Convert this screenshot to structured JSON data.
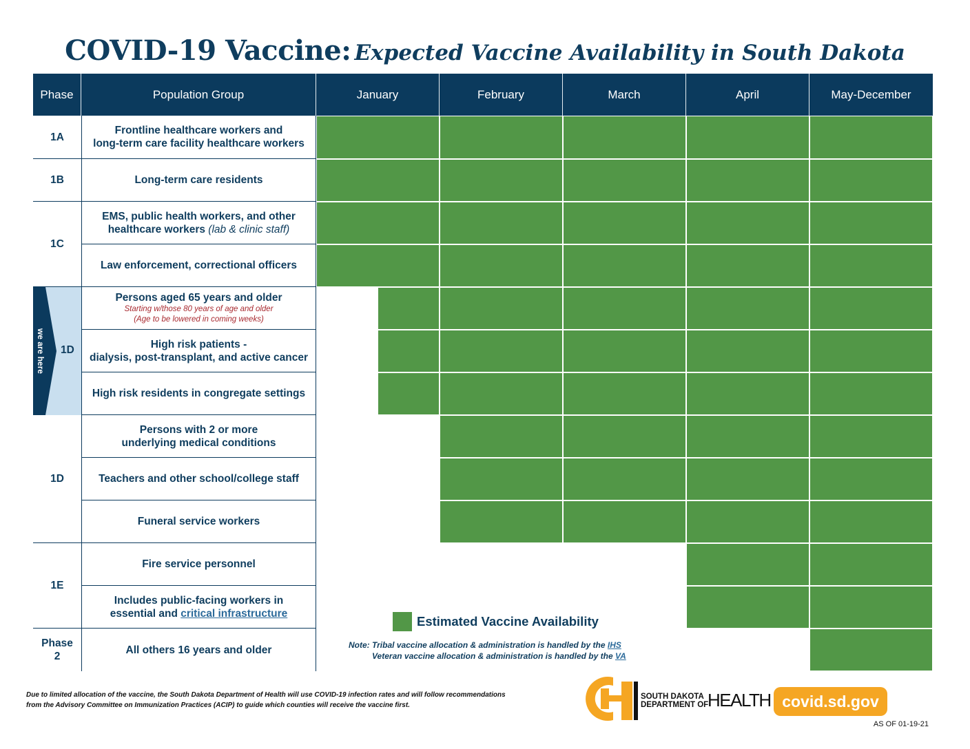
{
  "title": {
    "main": "COVID-19 Vaccine:",
    "sub": "Expected Vaccine Availability in South Dakota"
  },
  "headers": {
    "phase": "Phase",
    "group": "Population Group",
    "months": [
      "January",
      "February",
      "March",
      "April",
      "May-December"
    ]
  },
  "phases": {
    "p1a": "1A",
    "p1b": "1B",
    "p1c": "1C",
    "p1d_here": "1D",
    "p1d": "1D",
    "p1e": "1E",
    "p2_line1": "Phase",
    "p2_line2": "2"
  },
  "we_are_here": "we are here",
  "rows": {
    "r1": {
      "l1": "Frontline healthcare workers and",
      "l2": "long-term care facility healthcare workers"
    },
    "r2": {
      "l1": "Long-term care residents"
    },
    "r3": {
      "l1": "EMS, public health workers, and other",
      "l2a": "healthcare workers ",
      "l2b": "(lab & clinic staff)"
    },
    "r4": {
      "l1": "Law enforcement, correctional officers"
    },
    "r5": {
      "l1": "Persons aged 65 years and older",
      "n1": "Starting w/those 80 years of age and older",
      "n2": "(Age to be lowered in coming weeks)"
    },
    "r6": {
      "l1": "High risk patients -",
      "l2": "dialysis, post-transplant, and active cancer"
    },
    "r7": {
      "l1": "High risk residents in congregate settings"
    },
    "r8": {
      "l1": "Persons with 2 or more",
      "l2": "underlying medical conditions"
    },
    "r9": {
      "l1": "Teachers and other school/college staff"
    },
    "r10": {
      "l1": "Funeral service workers"
    },
    "r11": {
      "l1": "Fire service personnel"
    },
    "r12": {
      "l1": "Includes public-facing workers in",
      "l2a": "essential and ",
      "l2b": "critical infrastructure"
    },
    "r13": {
      "l1": "All others 16 years and older"
    }
  },
  "legend": "Estimated Vaccine Availability",
  "notes": {
    "n1a": "Note: Tribal vaccine allocation & administration is handled by the ",
    "n1b": "IHS",
    "n2a": "Veteran vaccine allocation & administration is handled by the ",
    "n2b": "VA"
  },
  "footnote": {
    "l1": "Due to limited allocation of the vaccine, the South Dakota Department of Health will use COVID-19 infection rates and will follow recommendations",
    "l2": "from the Advisory Committee on Immunization Practices (ACIP) to guide which counties will receive the vaccine first."
  },
  "logo": {
    "line1": "SOUTH DAKOTA",
    "line2": "DEPARTMENT OF",
    "health": "HEALTH"
  },
  "website": "covid.sd.gov",
  "as_of": "AS OF 01-19-21",
  "colors": {
    "navy": "#0b3a5d",
    "green": "#529747",
    "orange": "#f5a623",
    "highlight": "#c9dfef"
  }
}
